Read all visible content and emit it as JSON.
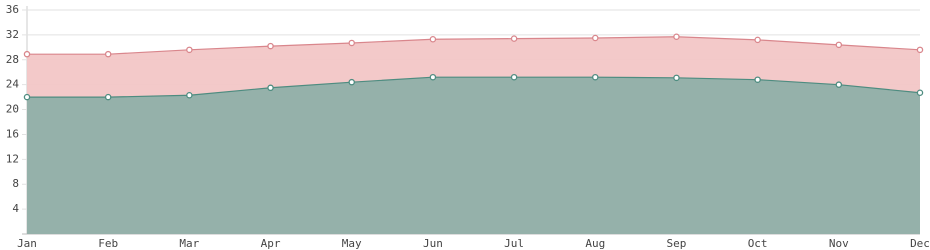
{
  "chart_data": {
    "type": "area",
    "categories": [
      "Jan",
      "Feb",
      "Mar",
      "Apr",
      "May",
      "Jun",
      "Jul",
      "Aug",
      "Sep",
      "Oct",
      "Nov",
      "Dec"
    ],
    "series": [
      {
        "color": "#d9868c",
        "fill": "#f2c6c6",
        "values": [
          28.9,
          28.9,
          29.6,
          30.2,
          30.7,
          31.3,
          31.4,
          31.5,
          31.7,
          31.2,
          30.4,
          29.6
        ]
      },
      {
        "color": "#4e8c80",
        "fill": "#8fb0a9",
        "values": [
          22.0,
          22.0,
          22.3,
          23.5,
          24.4,
          25.2,
          25.2,
          25.2,
          25.1,
          24.8,
          24.0,
          22.7
        ]
      }
    ],
    "ylim": [
      0,
      36
    ],
    "yticks": [
      4,
      8,
      12,
      16,
      20,
      24,
      28,
      32,
      36
    ],
    "grid": true
  }
}
